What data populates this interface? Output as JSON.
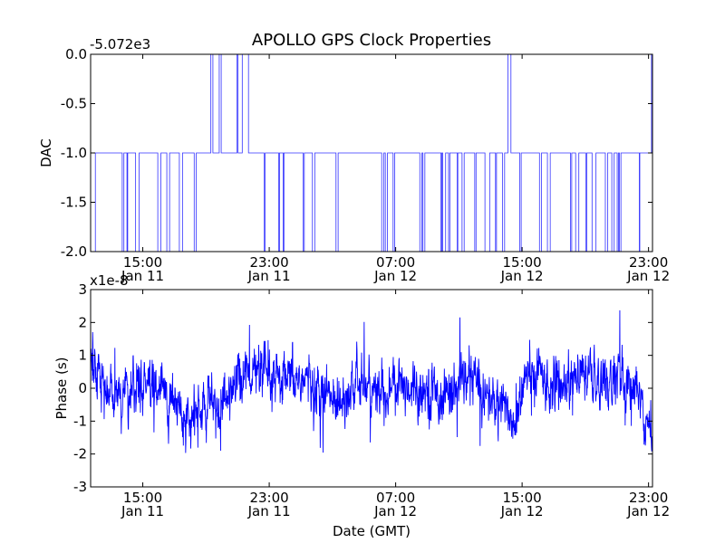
{
  "figure": {
    "title": "APOLLO GPS Clock Properties"
  },
  "chart_data": [
    {
      "type": "line",
      "ylabel": "DAC",
      "xlabel": "",
      "offset_label": "-5.072e3",
      "ylim": [
        -2.0,
        0.0
      ],
      "yticks": [
        "-2.0",
        "-1.5",
        "-1.0",
        "-0.5",
        "0.0"
      ],
      "yvalues": [
        -2.0,
        -1.5,
        -1.0,
        -0.5,
        0.0
      ],
      "xlim_hours": [
        11.7,
        47.25
      ],
      "xticks": [
        {
          "time": "15:00",
          "date": "Jan 11",
          "hour": 15
        },
        {
          "time": "23:00",
          "date": "Jan 11",
          "hour": 23
        },
        {
          "time": "07:00",
          "date": "Jan 12",
          "hour": 31
        },
        {
          "time": "15:00",
          "date": "Jan 12",
          "hour": 39
        },
        {
          "time": "23:00",
          "date": "Jan 12",
          "hour": 47
        }
      ],
      "line_color": "#3333ff",
      "grid": false
    },
    {
      "type": "line",
      "ylabel": "Phase (s)",
      "xlabel": "Date (GMT)",
      "offset_label": "x1e-8",
      "ylim": [
        -3,
        3
      ],
      "yticks": [
        "-3",
        "-2",
        "-1",
        "0",
        "1",
        "2",
        "3"
      ],
      "yvalues": [
        -3,
        -2,
        -1,
        0,
        1,
        2,
        3
      ],
      "xlim_hours": [
        11.7,
        47.25
      ],
      "xticks": [
        {
          "time": "15:00",
          "date": "Jan 11",
          "hour": 15
        },
        {
          "time": "23:00",
          "date": "Jan 11",
          "hour": 23
        },
        {
          "time": "07:00",
          "date": "Jan 12",
          "hour": 31
        },
        {
          "time": "15:00",
          "date": "Jan 12",
          "hour": 39
        },
        {
          "time": "23:00",
          "date": "Jan 12",
          "hour": 47
        }
      ],
      "line_color": "#0000ff",
      "grid": false,
      "trend_hours": [
        11.7,
        12.0,
        12.4,
        13.0,
        14.0,
        15.0,
        16.0,
        17.5,
        18.0,
        18.5,
        19.5,
        20.5,
        21.0,
        22.0,
        23.0,
        24.0,
        25.0,
        26.0,
        27.0,
        28.0,
        29.0,
        30.0,
        31.0,
        32.0,
        33.0,
        34.0,
        35.0,
        36.0,
        37.0,
        38.0,
        38.5,
        39.0,
        40.0,
        41.0,
        42.0,
        43.0,
        44.0,
        45.0,
        46.0,
        46.5,
        47.0,
        47.25
      ],
      "trend_values": [
        0.8,
        0.7,
        0.4,
        -0.3,
        -0.1,
        0.1,
        0.0,
        -0.6,
        -1.1,
        -0.7,
        -0.6,
        -0.3,
        0.4,
        0.5,
        0.2,
        0.1,
        0.3,
        0.0,
        -0.4,
        0.0,
        0.1,
        -0.2,
        0.0,
        0.1,
        0.0,
        -0.2,
        0.1,
        0.3,
        -0.4,
        -0.6,
        -1.2,
        0.1,
        0.4,
        0.1,
        0.2,
        0.4,
        0.1,
        0.3,
        0.0,
        -0.3,
        -1.0,
        -1.6
      ]
    }
  ]
}
